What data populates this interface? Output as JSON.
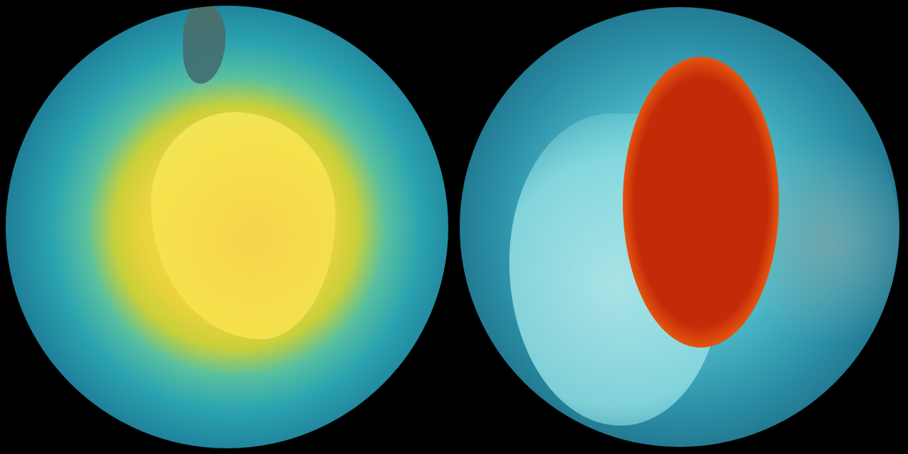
{
  "globes": [
    {
      "name": "south-pole-view",
      "colors": {
        "center": "#f3e84a",
        "mid": "#2aa2b0",
        "edge": "#0d3349"
      }
    },
    {
      "name": "north-pole-view",
      "colors": {
        "hotspot": "#c22a08",
        "ring": "#f4b020",
        "ocean": "#2a8ea6"
      }
    }
  ]
}
